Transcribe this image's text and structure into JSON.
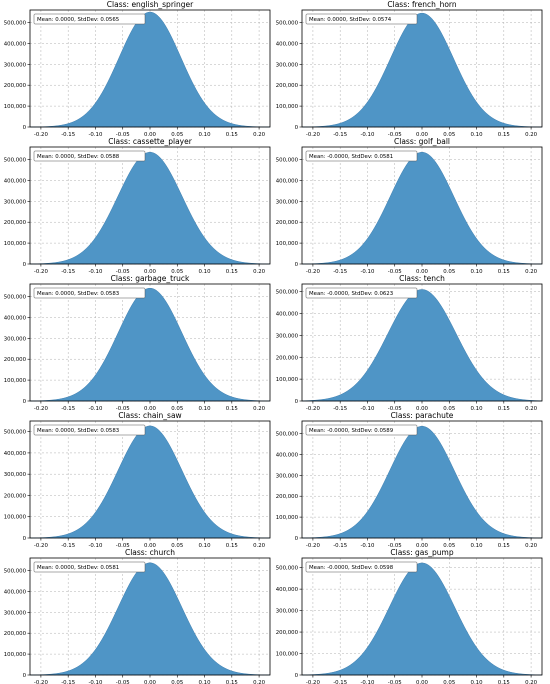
{
  "colors": {
    "fill": "#4f95c6",
    "stroke": "#3f7fb0"
  },
  "chart_data": [
    {
      "type": "area",
      "title": "Class: english_springer",
      "stats": "Mean: 0.0000, StdDev: 0.0565",
      "mean": 0.0,
      "std": 0.0565,
      "peak": 550000,
      "xlim": [
        -0.22,
        0.22
      ],
      "ylim": [
        0,
        560000
      ],
      "xticks": [
        -0.2,
        -0.15,
        -0.1,
        -0.05,
        0,
        0.05,
        0.1,
        0.15,
        0.2
      ],
      "xtick_labels": [
        "-0.20",
        "-0.15",
        "-0.10",
        "-0.05",
        "0.00",
        "0.05",
        "0.10",
        "0.15",
        "0.20"
      ],
      "yticks": [
        0,
        100000,
        200000,
        300000,
        400000,
        500000
      ],
      "ytick_labels": [
        "0",
        "100,000",
        "200,000",
        "300,000",
        "400,000",
        "500,000"
      ],
      "grid": true
    },
    {
      "type": "area",
      "title": "Class: french_horn",
      "stats": "Mean: 0.0000, StdDev: 0.0574",
      "mean": 0.0,
      "std": 0.0574,
      "peak": 545000,
      "xlim": [
        -0.22,
        0.22
      ],
      "ylim": [
        0,
        560000
      ],
      "xticks": [
        -0.2,
        -0.15,
        -0.1,
        -0.05,
        0,
        0.05,
        0.1,
        0.15,
        0.2
      ],
      "xtick_labels": [
        "-0.20",
        "-0.15",
        "-0.10",
        "-0.05",
        "0.00",
        "0.05",
        "0.10",
        "0.15",
        "0.20"
      ],
      "yticks": [
        0,
        100000,
        200000,
        300000,
        400000,
        500000
      ],
      "ytick_labels": [
        "0",
        "100,000",
        "200,000",
        "300,000",
        "400,000",
        "500,000"
      ],
      "grid": true
    },
    {
      "type": "area",
      "title": "Class: cassette_player",
      "stats": "Mean: 0.0000, StdDev: 0.0588",
      "mean": 0.0,
      "std": 0.0588,
      "peak": 535000,
      "xlim": [
        -0.22,
        0.22
      ],
      "ylim": [
        0,
        560000
      ],
      "xticks": [
        -0.2,
        -0.15,
        -0.1,
        -0.05,
        0,
        0.05,
        0.1,
        0.15,
        0.2
      ],
      "xtick_labels": [
        "-0.20",
        "-0.15",
        "-0.10",
        "-0.05",
        "0.00",
        "0.05",
        "0.10",
        "0.15",
        "0.20"
      ],
      "yticks": [
        0,
        100000,
        200000,
        300000,
        400000,
        500000
      ],
      "ytick_labels": [
        "0",
        "100,000",
        "200,000",
        "300,000",
        "400,000",
        "500,000"
      ],
      "grid": true
    },
    {
      "type": "area",
      "title": "Class: golf_ball",
      "stats": "Mean: -0.0000, StdDev: 0.0581",
      "mean": 0.0,
      "std": 0.0581,
      "peak": 535000,
      "xlim": [
        -0.22,
        0.22
      ],
      "ylim": [
        0,
        560000
      ],
      "xticks": [
        -0.2,
        -0.15,
        -0.1,
        -0.05,
        0,
        0.05,
        0.1,
        0.15,
        0.2
      ],
      "xtick_labels": [
        "-0.20",
        "-0.15",
        "-0.10",
        "-0.05",
        "0.00",
        "0.05",
        "0.10",
        "0.15",
        "0.20"
      ],
      "yticks": [
        0,
        100000,
        200000,
        300000,
        400000,
        500000
      ],
      "ytick_labels": [
        "0",
        "100,000",
        "200,000",
        "300,000",
        "400,000",
        "500,000"
      ],
      "grid": true
    },
    {
      "type": "area",
      "title": "Class: garbage_truck",
      "stats": "Mean: 0.0000, StdDev: 0.0583",
      "mean": 0.0,
      "std": 0.0583,
      "peak": 540000,
      "xlim": [
        -0.22,
        0.22
      ],
      "ylim": [
        0,
        560000
      ],
      "xticks": [
        -0.2,
        -0.15,
        -0.1,
        -0.05,
        0,
        0.05,
        0.1,
        0.15,
        0.2
      ],
      "xtick_labels": [
        "-0.20",
        "-0.15",
        "-0.10",
        "-0.05",
        "0.00",
        "0.05",
        "0.10",
        "0.15",
        "0.20"
      ],
      "yticks": [
        0,
        100000,
        200000,
        300000,
        400000,
        500000
      ],
      "ytick_labels": [
        "0",
        "100,000",
        "200,000",
        "300,000",
        "400,000",
        "500,000"
      ],
      "grid": true
    },
    {
      "type": "area",
      "title": "Class: tench",
      "stats": "Mean: -0.0000, StdDev: 0.0623",
      "mean": 0.0,
      "std": 0.0623,
      "peak": 510000,
      "xlim": [
        -0.22,
        0.22
      ],
      "ylim": [
        0,
        535000
      ],
      "xticks": [
        -0.2,
        -0.15,
        -0.1,
        -0.05,
        0,
        0.05,
        0.1,
        0.15,
        0.2
      ],
      "xtick_labels": [
        "-0.20",
        "-0.15",
        "-0.10",
        "-0.05",
        "0.00",
        "0.05",
        "0.10",
        "0.15",
        "0.20"
      ],
      "yticks": [
        0,
        100000,
        200000,
        300000,
        400000,
        500000
      ],
      "ytick_labels": [
        "0",
        "100,000",
        "200,000",
        "300,000",
        "400,000",
        "500,000"
      ],
      "grid": true
    },
    {
      "type": "area",
      "title": "Class: chain_saw",
      "stats": "Mean: 0.0000, StdDev: 0.0583",
      "mean": 0.0,
      "std": 0.0583,
      "peak": 527000,
      "xlim": [
        -0.22,
        0.22
      ],
      "ylim": [
        0,
        550000
      ],
      "xticks": [
        -0.2,
        -0.15,
        -0.1,
        -0.05,
        0,
        0.05,
        0.1,
        0.15,
        0.2
      ],
      "xtick_labels": [
        "-0.20",
        "-0.15",
        "-0.10",
        "-0.05",
        "0.00",
        "0.05",
        "0.10",
        "0.15",
        "0.20"
      ],
      "yticks": [
        0,
        100000,
        200000,
        300000,
        400000,
        500000
      ],
      "ytick_labels": [
        "0",
        "100,000",
        "200,000",
        "300,000",
        "400,000",
        "500,000"
      ],
      "grid": true
    },
    {
      "type": "area",
      "title": "Class: parachute",
      "stats": "Mean: -0.0000, StdDev: 0.0589",
      "mean": 0.0,
      "std": 0.0589,
      "peak": 535000,
      "xlim": [
        -0.22,
        0.22
      ],
      "ylim": [
        0,
        560000
      ],
      "xticks": [
        -0.2,
        -0.15,
        -0.1,
        -0.05,
        0,
        0.05,
        0.1,
        0.15,
        0.2
      ],
      "xtick_labels": [
        "-0.20",
        "-0.15",
        "-0.10",
        "-0.05",
        "0.00",
        "0.05",
        "0.10",
        "0.15",
        "0.20"
      ],
      "yticks": [
        0,
        100000,
        200000,
        300000,
        400000,
        500000
      ],
      "ytick_labels": [
        "0",
        "100,000",
        "200,000",
        "300,000",
        "400,000",
        "500,000"
      ],
      "grid": true
    },
    {
      "type": "area",
      "title": "Class: church",
      "stats": "Mean: 0.0000, StdDev: 0.0581",
      "mean": 0.0,
      "std": 0.0581,
      "peak": 537000,
      "xlim": [
        -0.22,
        0.22
      ],
      "ylim": [
        0,
        560000
      ],
      "xticks": [
        -0.2,
        -0.15,
        -0.1,
        -0.05,
        0,
        0.05,
        0.1,
        0.15,
        0.2
      ],
      "xtick_labels": [
        "-0.20",
        "-0.15",
        "-0.10",
        "-0.05",
        "0.00",
        "0.05",
        "0.10",
        "0.15",
        "0.20"
      ],
      "yticks": [
        0,
        100000,
        200000,
        300000,
        400000,
        500000
      ],
      "ytick_labels": [
        "0",
        "100,000",
        "200,000",
        "300,000",
        "400,000",
        "500,000"
      ],
      "grid": true
    },
    {
      "type": "area",
      "title": "Class: gas_pump",
      "stats": "Mean: -0.0000, StdDev: 0.0598",
      "mean": 0.0,
      "std": 0.0598,
      "peak": 522000,
      "xlim": [
        -0.22,
        0.22
      ],
      "ylim": [
        0,
        545000
      ],
      "xticks": [
        -0.2,
        -0.15,
        -0.1,
        -0.05,
        0,
        0.05,
        0.1,
        0.15,
        0.2
      ],
      "xtick_labels": [
        "-0.20",
        "-0.15",
        "-0.10",
        "-0.05",
        "0.00",
        "0.05",
        "0.10",
        "0.15",
        "0.20"
      ],
      "yticks": [
        0,
        100000,
        200000,
        300000,
        400000,
        500000
      ],
      "ytick_labels": [
        "0",
        "100,000",
        "200,000",
        "300,000",
        "400,000",
        "500,000"
      ],
      "grid": true
    }
  ]
}
